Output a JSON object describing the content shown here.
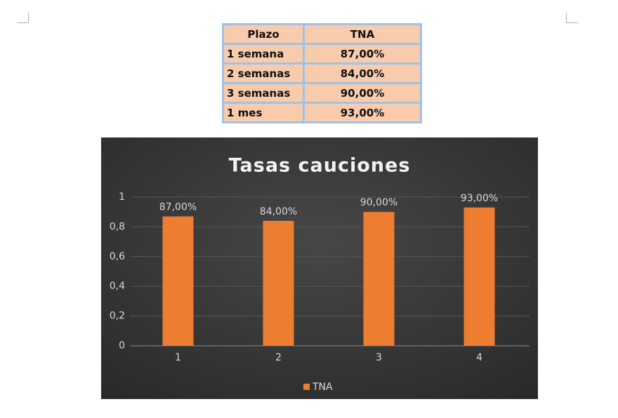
{
  "table": {
    "header": [
      "Plazo",
      "TNA"
    ],
    "rows": [
      [
        "1 semana",
        "87,00%"
      ],
      [
        "2 semanas",
        "84,00%"
      ],
      [
        "3 semanas",
        "90,00%"
      ],
      [
        "1 mes",
        "93,00%"
      ]
    ]
  },
  "chart_data": {
    "type": "bar",
    "title": "Tasas cauciones",
    "categories": [
      "1",
      "2",
      "3",
      "4"
    ],
    "series": [
      {
        "name": "TNA",
        "color": "#ed7d31",
        "values": [
          0.87,
          0.84,
          0.9,
          0.93
        ],
        "value_labels": [
          "87,00%",
          "84,00%",
          "90,00%",
          "93,00%"
        ]
      }
    ],
    "ylim": [
      0,
      1
    ],
    "yticks": [
      0,
      {
        "value": 0.2,
        "label": "0,2"
      },
      {
        "value": 0.4,
        "label": "0,4"
      },
      {
        "value": 0.6,
        "label": "0,6"
      },
      {
        "value": 0.8,
        "label": "0,8"
      },
      1
    ],
    "grid": true,
    "legend": "bottom"
  }
}
